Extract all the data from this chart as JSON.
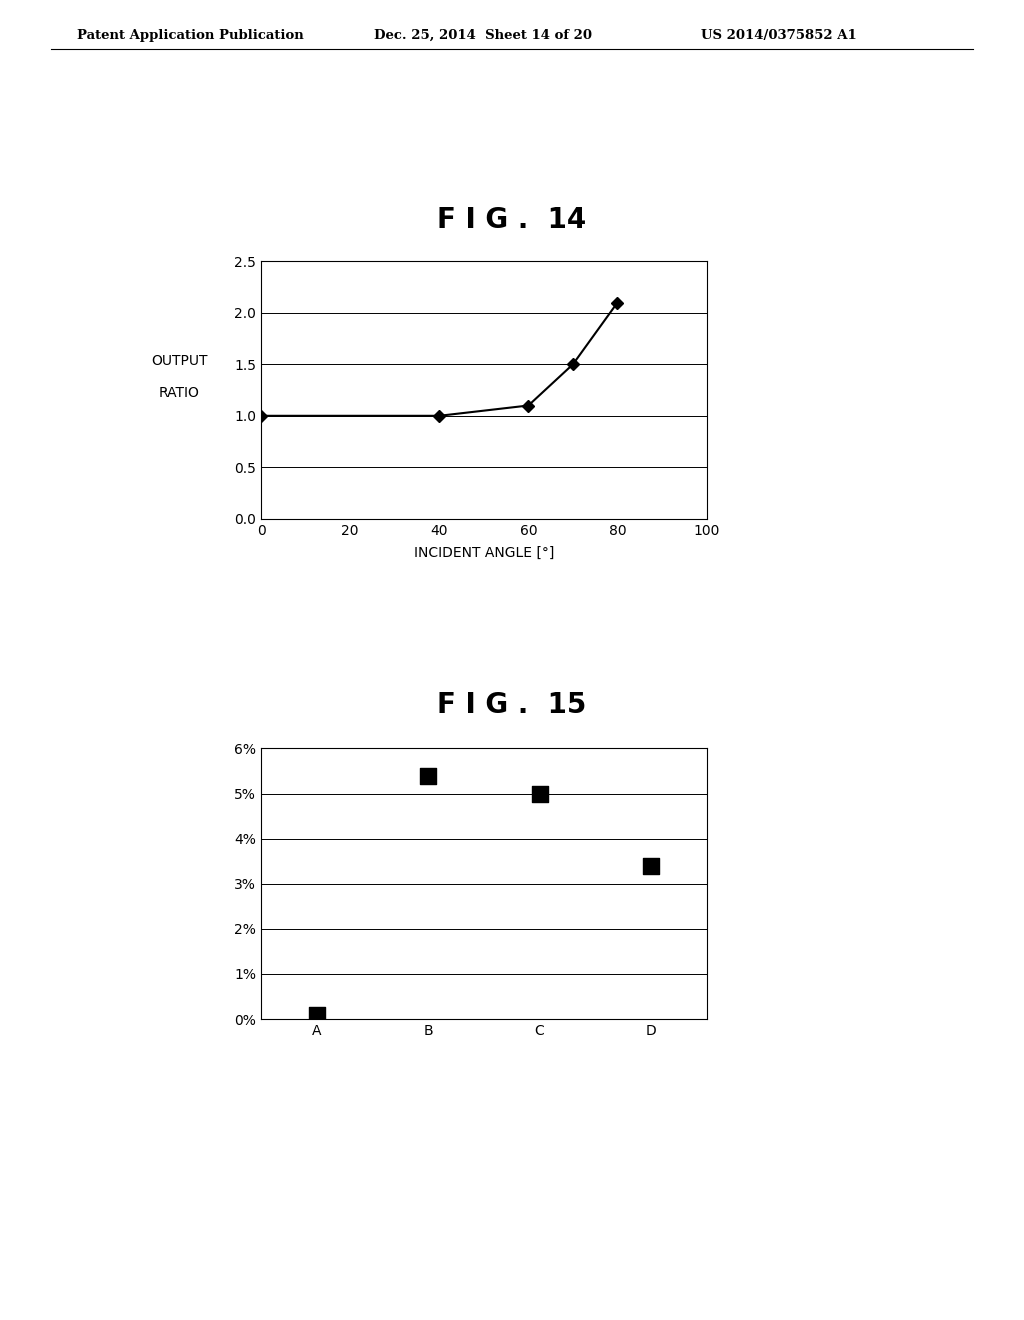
{
  "header_left": "Patent Application Publication",
  "header_mid": "Dec. 25, 2014  Sheet 14 of 20",
  "header_right": "US 2014/0375852 A1",
  "fig14_title": "F I G .  14",
  "fig14_xlabel": "INCIDENT ANGLE [°]",
  "fig14_ylabel_line1": "OUTPUT",
  "fig14_ylabel_line2": "RATIO",
  "fig14_x": [
    0,
    40,
    60,
    70,
    80
  ],
  "fig14_y": [
    1.0,
    1.0,
    1.1,
    1.5,
    2.1
  ],
  "fig14_xlim": [
    0,
    100
  ],
  "fig14_ylim": [
    0,
    2.5
  ],
  "fig14_xticks": [
    0,
    20,
    40,
    60,
    80,
    100
  ],
  "fig14_yticks": [
    0,
    0.5,
    1.0,
    1.5,
    2.0,
    2.5
  ],
  "fig15_title": "F I G .  15",
  "fig15_categories": [
    "A",
    "B",
    "C",
    "D"
  ],
  "fig15_values": [
    0.001,
    0.054,
    0.05,
    0.034
  ],
  "fig15_ylim": [
    0,
    0.06
  ],
  "fig15_ytick_labels": [
    "0%",
    "1%",
    "2%",
    "3%",
    "4%",
    "5%",
    "6%"
  ],
  "fig15_yticks": [
    0,
    0.01,
    0.02,
    0.03,
    0.04,
    0.05,
    0.06
  ],
  "background_color": "#ffffff",
  "line_color": "#000000",
  "marker_color": "#000000",
  "text_color": "#000000"
}
